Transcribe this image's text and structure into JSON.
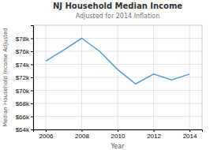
{
  "chart_data": {
    "type": "line",
    "title": "NJ Household Median Income",
    "subtitle": "Adjusted for 2014 Inflation",
    "xlabel": "Year",
    "ylabel": "Median Household Income Adjusted",
    "x": [
      2006,
      2007,
      2008,
      2009,
      2010,
      2011,
      2012,
      2013,
      2014
    ],
    "values": [
      74500,
      76200,
      78000,
      76000,
      73200,
      71000,
      72500,
      71600,
      72500
    ],
    "color": "#5b9bd5",
    "xlim": [
      2005.3,
      2014.7
    ],
    "ylim": [
      64000,
      80000
    ],
    "xticks": [
      2006,
      2008,
      2010,
      2012,
      2014
    ],
    "yticks": [
      {
        "value": 64000,
        "label": "$64k"
      },
      {
        "value": 66000,
        "label": "$66k"
      },
      {
        "value": 68000,
        "label": "$68k"
      },
      {
        "value": 70000,
        "label": "$70k"
      },
      {
        "value": 72000,
        "label": "$72k"
      },
      {
        "value": 74000,
        "label": "$74k"
      },
      {
        "value": 76000,
        "label": "$76k"
      },
      {
        "value": 78000,
        "label": "$78k"
      }
    ],
    "grid": true
  }
}
